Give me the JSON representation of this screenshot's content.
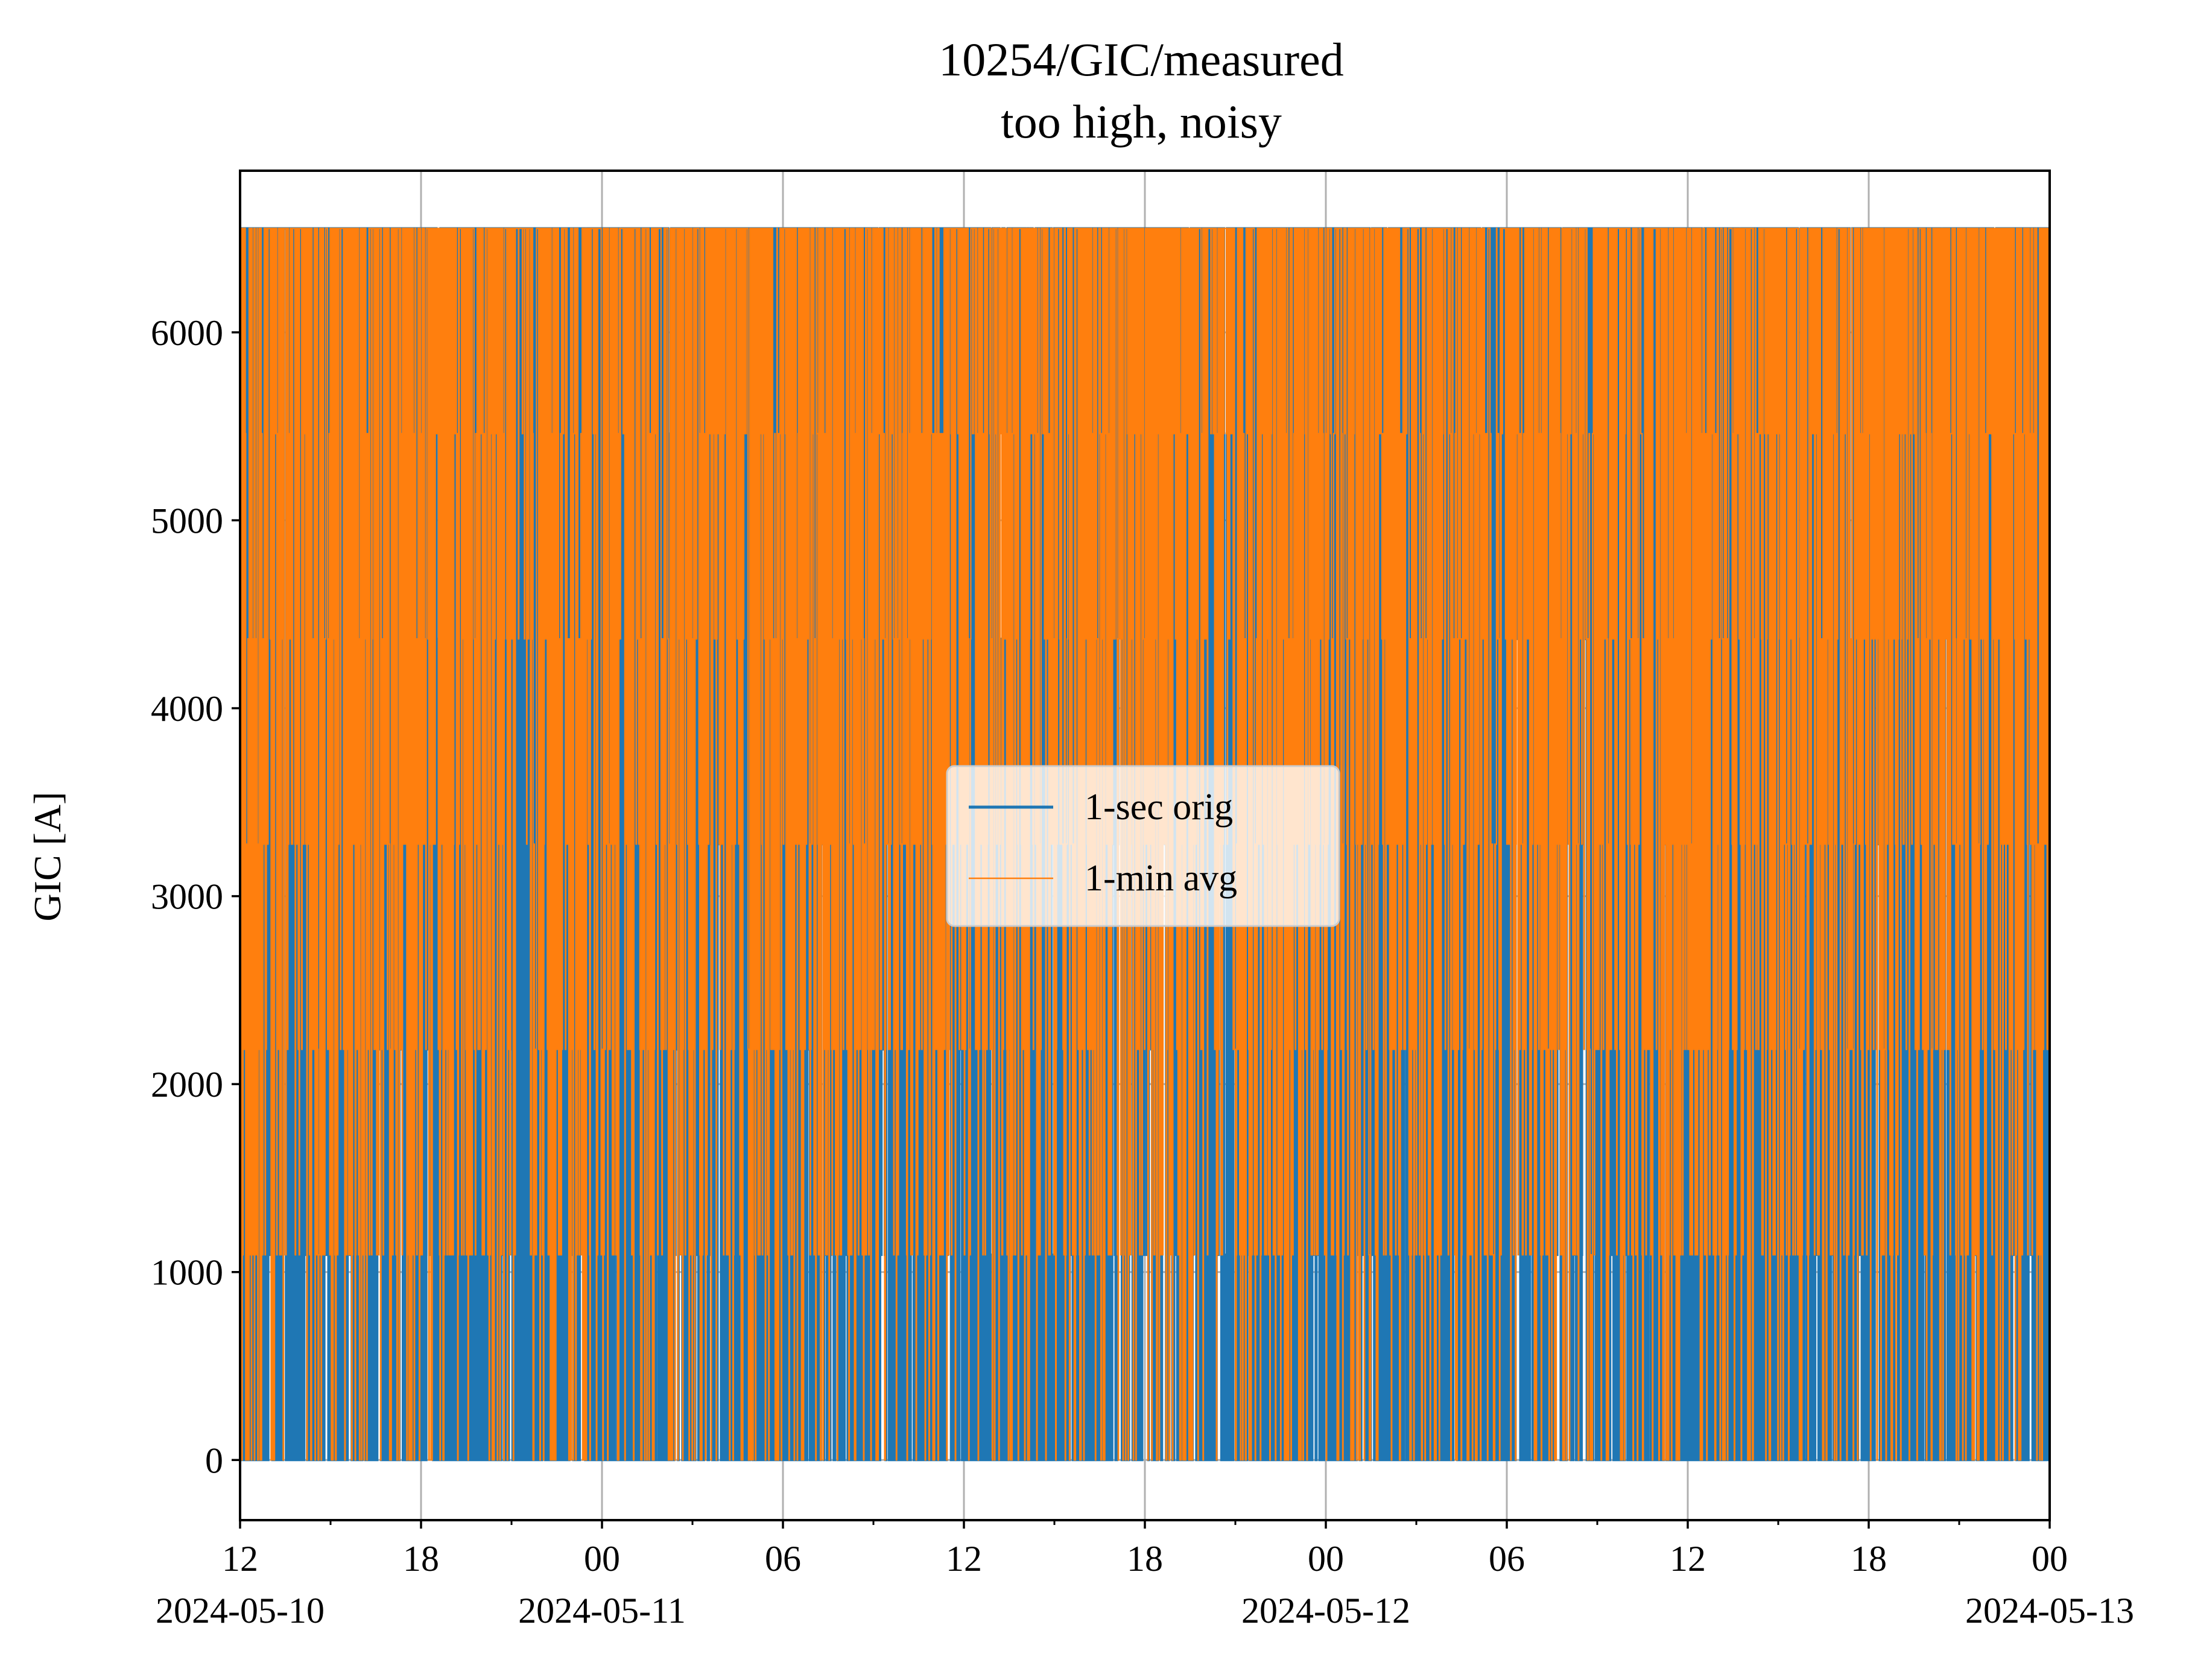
{
  "chart_data": {
    "type": "line",
    "title": "10254/GIC/measured",
    "subtitle": "too high, noisy",
    "xlabel": "",
    "ylabel": "GIC [A]",
    "xlim": [
      "2024-05-10 12:00",
      "2024-05-13 00:00"
    ],
    "ylim": [
      -320,
      6860
    ],
    "grid": true,
    "legend_placement": "center",
    "x_ticks": [
      {
        "time": "2024-05-10 12:00",
        "label": "12",
        "date": "2024-05-10"
      },
      {
        "time": "2024-05-10 18:00",
        "label": "18",
        "date": ""
      },
      {
        "time": "2024-05-11 00:00",
        "label": "00",
        "date": "2024-05-11"
      },
      {
        "time": "2024-05-11 06:00",
        "label": "06",
        "date": ""
      },
      {
        "time": "2024-05-11 12:00",
        "label": "12",
        "date": ""
      },
      {
        "time": "2024-05-11 18:00",
        "label": "18",
        "date": ""
      },
      {
        "time": "2024-05-12 00:00",
        "label": "00",
        "date": "2024-05-12"
      },
      {
        "time": "2024-05-12 06:00",
        "label": "06",
        "date": ""
      },
      {
        "time": "2024-05-12 12:00",
        "label": "12",
        "date": ""
      },
      {
        "time": "2024-05-12 18:00",
        "label": "18",
        "date": ""
      },
      {
        "time": "2024-05-13 00:00",
        "label": "00",
        "date": "2024-05-13"
      }
    ],
    "y_ticks": [
      0,
      1000,
      2000,
      3000,
      4000,
      5000,
      6000
    ],
    "y_tick_labels": [
      "0",
      "1000",
      "2000",
      "3000",
      "4000",
      "5000",
      "6000"
    ],
    "quantization_levels": [
      0,
      1092,
      2185,
      3277,
      4369,
      5461,
      6553
    ],
    "series": [
      {
        "name": "1-sec orig",
        "color": "#1f77b4",
        "style": "solid",
        "description_values": "rapid switching between quantized levels from 0 to 6553 A across the full interval",
        "dense_low_periods": [
          [
            "2024-05-11 12:00",
            "2024-05-11 15:00"
          ],
          [
            "2024-05-12 13:00",
            "2024-05-12 16:00"
          ]
        ]
      },
      {
        "name": "1-min avg",
        "color": "#ff7f0e",
        "style": "thin",
        "description_values": "rapid switching between quantized levels from 0 to 6553 A across the full interval"
      }
    ]
  }
}
